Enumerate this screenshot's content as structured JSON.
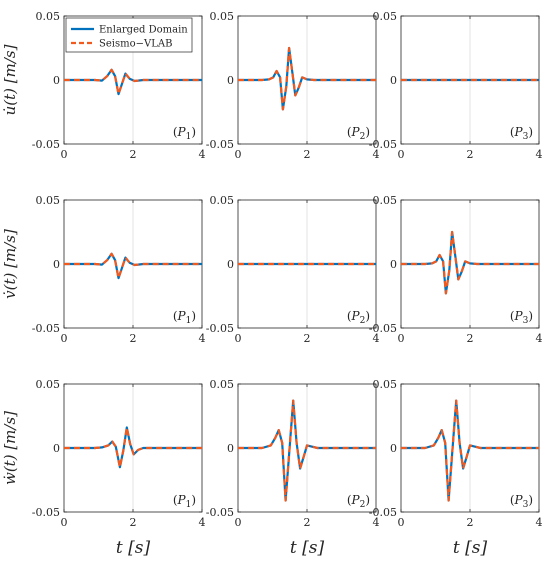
{
  "legend": {
    "items": [
      {
        "label": "Enlarged Domain",
        "color": "#0072BD",
        "dash": "solid"
      },
      {
        "label": "Seismo−VLAB",
        "color": "#F05A1E",
        "dash": "dashed"
      }
    ],
    "placement": "top-left of first panel"
  },
  "chart_data": {
    "type": "line",
    "layout": "3x3 grid",
    "x_ticks": [
      "0",
      "2",
      "4"
    ],
    "y_ticks": [
      "0.05",
      "0",
      "-0.05"
    ],
    "xlim": [
      0,
      4
    ],
    "ylim": [
      -0.05,
      0.05
    ],
    "xlabel": "t [s]",
    "row_ylabels": [
      "u̇(t) [m/s]",
      "v̇(t) [m/s]",
      "ẇ(t) [m/s]"
    ],
    "grid": "light vertical line at x = 2",
    "panels": [
      {
        "row": 0,
        "col": 0,
        "tag": "(P1)",
        "series_points": [
          [
            0,
            0
          ],
          [
            0.9,
            0
          ],
          [
            1.1,
            -0.0005
          ],
          [
            1.25,
            0.003
          ],
          [
            1.38,
            0.008
          ],
          [
            1.48,
            0.003
          ],
          [
            1.58,
            -0.011
          ],
          [
            1.68,
            -0.003
          ],
          [
            1.78,
            0.005
          ],
          [
            1.9,
            0.001
          ],
          [
            2.05,
            -0.0008
          ],
          [
            2.3,
            0
          ],
          [
            4,
            0
          ]
        ]
      },
      {
        "row": 0,
        "col": 1,
        "tag": "(P2)",
        "series_points": [
          [
            0,
            0
          ],
          [
            0.7,
            0
          ],
          [
            0.9,
            0.0005
          ],
          [
            1.02,
            0.002
          ],
          [
            1.12,
            0.007
          ],
          [
            1.22,
            0.002
          ],
          [
            1.3,
            -0.023
          ],
          [
            1.4,
            -0.005
          ],
          [
            1.48,
            0.025
          ],
          [
            1.58,
            0.005
          ],
          [
            1.66,
            -0.012
          ],
          [
            1.76,
            -0.006
          ],
          [
            1.86,
            0.002
          ],
          [
            2.0,
            0.0005
          ],
          [
            2.2,
            0
          ],
          [
            4,
            0
          ]
        ]
      },
      {
        "row": 0,
        "col": 2,
        "tag": "(P3)",
        "series_points": [
          [
            0,
            0
          ],
          [
            4,
            0
          ]
        ]
      },
      {
        "row": 1,
        "col": 0,
        "tag": "(P1)",
        "series_points": [
          [
            0,
            0
          ],
          [
            0.9,
            0
          ],
          [
            1.1,
            -0.0005
          ],
          [
            1.25,
            0.003
          ],
          [
            1.38,
            0.008
          ],
          [
            1.48,
            0.003
          ],
          [
            1.58,
            -0.011
          ],
          [
            1.68,
            -0.003
          ],
          [
            1.78,
            0.005
          ],
          [
            1.9,
            0.001
          ],
          [
            2.05,
            -0.0008
          ],
          [
            2.3,
            0
          ],
          [
            4,
            0
          ]
        ]
      },
      {
        "row": 1,
        "col": 1,
        "tag": "(P2)",
        "series_points": [
          [
            0,
            0
          ],
          [
            4,
            0
          ]
        ]
      },
      {
        "row": 1,
        "col": 2,
        "tag": "(P3)",
        "series_points": [
          [
            0,
            0
          ],
          [
            0.7,
            0
          ],
          [
            0.9,
            0.0005
          ],
          [
            1.02,
            0.002
          ],
          [
            1.12,
            0.007
          ],
          [
            1.22,
            0.002
          ],
          [
            1.3,
            -0.023
          ],
          [
            1.4,
            -0.005
          ],
          [
            1.48,
            0.025
          ],
          [
            1.58,
            0.005
          ],
          [
            1.66,
            -0.012
          ],
          [
            1.76,
            -0.006
          ],
          [
            1.86,
            0.002
          ],
          [
            2.0,
            0.0005
          ],
          [
            2.2,
            0
          ],
          [
            4,
            0
          ]
        ]
      },
      {
        "row": 2,
        "col": 0,
        "tag": "(P1)",
        "series_points": [
          [
            0,
            0
          ],
          [
            0.9,
            0
          ],
          [
            1.1,
            0.0005
          ],
          [
            1.28,
            0.002
          ],
          [
            1.4,
            0.005
          ],
          [
            1.5,
            0.001
          ],
          [
            1.62,
            -0.015
          ],
          [
            1.72,
            -0.002
          ],
          [
            1.82,
            0.016
          ],
          [
            1.92,
            0.003
          ],
          [
            2.02,
            -0.005
          ],
          [
            2.15,
            -0.0015
          ],
          [
            2.3,
            0
          ],
          [
            4,
            0
          ]
        ]
      },
      {
        "row": 2,
        "col": 1,
        "tag": "(P2)",
        "series_points": [
          [
            0,
            0
          ],
          [
            0.7,
            0
          ],
          [
            0.95,
            0.002
          ],
          [
            1.08,
            0.008
          ],
          [
            1.18,
            0.014
          ],
          [
            1.28,
            0.004
          ],
          [
            1.38,
            -0.041
          ],
          [
            1.48,
            -0.005
          ],
          [
            1.6,
            0.037
          ],
          [
            1.7,
            0.004
          ],
          [
            1.8,
            -0.016
          ],
          [
            1.9,
            -0.007
          ],
          [
            2.0,
            0.002
          ],
          [
            2.15,
            0.001
          ],
          [
            2.3,
            0
          ],
          [
            4,
            0
          ]
        ]
      },
      {
        "row": 2,
        "col": 2,
        "tag": "(P3)",
        "series_points": [
          [
            0,
            0
          ],
          [
            0.7,
            0
          ],
          [
            0.95,
            0.002
          ],
          [
            1.08,
            0.008
          ],
          [
            1.18,
            0.014
          ],
          [
            1.28,
            0.004
          ],
          [
            1.38,
            -0.041
          ],
          [
            1.48,
            -0.005
          ],
          [
            1.6,
            0.037
          ],
          [
            1.7,
            0.004
          ],
          [
            1.8,
            -0.016
          ],
          [
            1.9,
            -0.007
          ],
          [
            2.0,
            0.002
          ],
          [
            2.15,
            0.001
          ],
          [
            2.3,
            0
          ],
          [
            4,
            0
          ]
        ]
      }
    ]
  }
}
